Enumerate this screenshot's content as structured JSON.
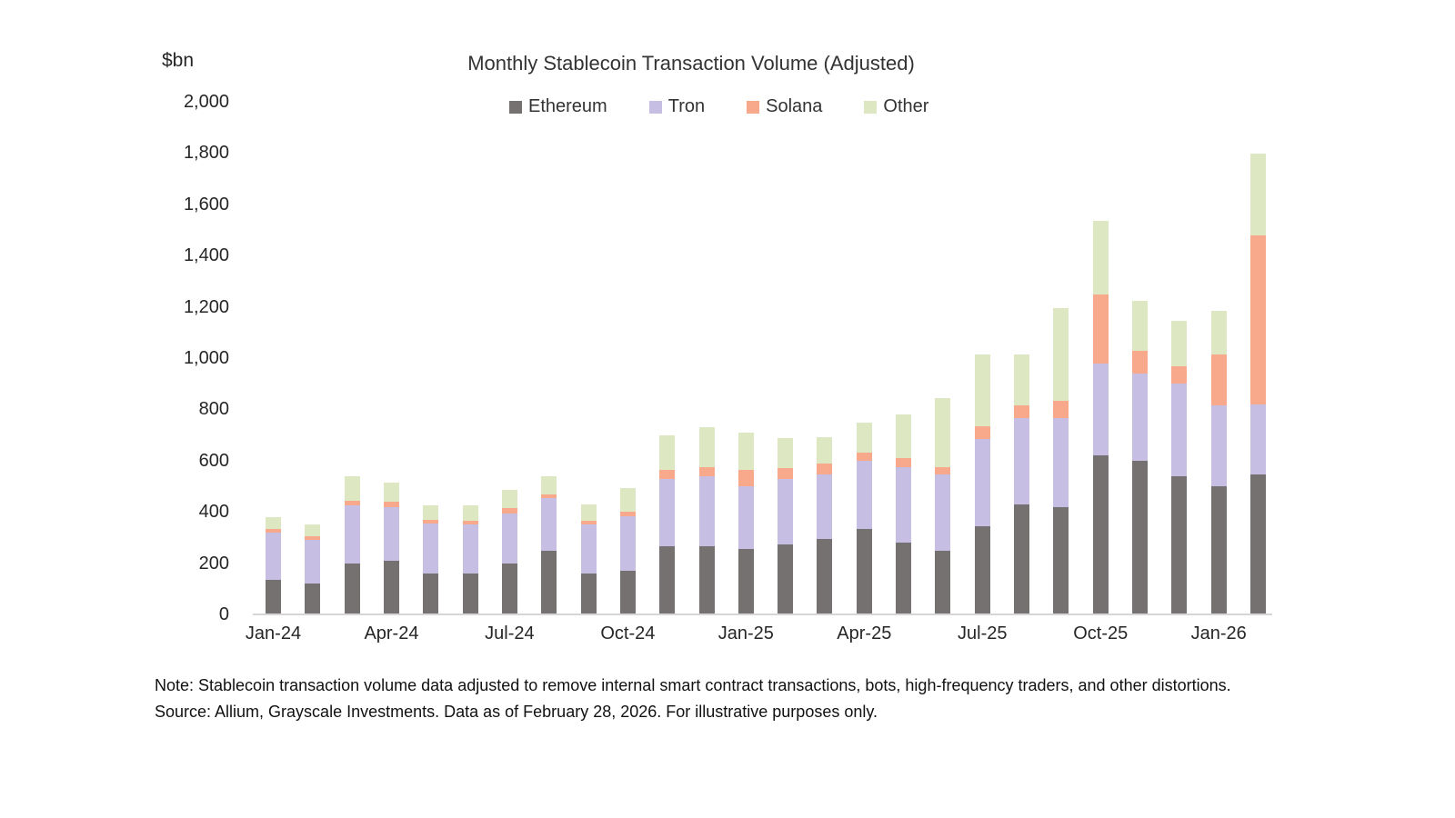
{
  "page": {
    "background": "#ffffff"
  },
  "chart_data": {
    "type": "bar",
    "variant": "stacked",
    "title": "Monthly Stablecoin Transaction Volume (Adjusted)",
    "y_axis_unit_label": "$bn",
    "ylabel": "",
    "xlabel": "",
    "ylim": [
      0,
      2000
    ],
    "y_tick_step": 200,
    "y_tick_labels": [
      "0",
      "200",
      "400",
      "600",
      "800",
      "1,000",
      "1,200",
      "1,400",
      "1,600",
      "1,800",
      "2,000"
    ],
    "grid": false,
    "legend_position": "top",
    "categories": [
      "Jan-24",
      "Feb-24",
      "Mar-24",
      "Apr-24",
      "May-24",
      "Jun-24",
      "Jul-24",
      "Aug-24",
      "Sep-24",
      "Oct-24",
      "Nov-24",
      "Dec-24",
      "Jan-25",
      "Feb-25",
      "Mar-25",
      "Apr-25",
      "May-25",
      "Jun-25",
      "Jul-25",
      "Aug-25",
      "Sep-25",
      "Oct-25",
      "Nov-25",
      "Dec-25",
      "Jan-26",
      "Feb-26"
    ],
    "x_tick_labels": [
      "Jan-24",
      "Apr-24",
      "Jul-24",
      "Oct-24",
      "Jan-25",
      "Apr-25",
      "Jul-25",
      "Oct-25",
      "Jan-26"
    ],
    "x_tick_every": 3,
    "series": [
      {
        "name": "Ethereum",
        "color": "#767171",
        "values": [
          135,
          120,
          200,
          210,
          160,
          160,
          200,
          250,
          160,
          170,
          265,
          265,
          255,
          275,
          295,
          335,
          280,
          250,
          345,
          430,
          420,
          620,
          600,
          540,
          500,
          545
        ]
      },
      {
        "name": "Tron",
        "color": "#c6bfe3",
        "values": [
          185,
          170,
          225,
          210,
          195,
          190,
          195,
          205,
          190,
          215,
          265,
          275,
          245,
          255,
          250,
          265,
          295,
          295,
          340,
          335,
          345,
          360,
          340,
          360,
          315,
          275
        ]
      },
      {
        "name": "Solana",
        "color": "#f9a98b",
        "values": [
          15,
          15,
          20,
          20,
          15,
          15,
          20,
          15,
          15,
          15,
          35,
          35,
          65,
          40,
          45,
          30,
          35,
          30,
          50,
          50,
          70,
          270,
          90,
          70,
          200,
          660
        ]
      },
      {
        "name": "Other",
        "color": "#dde8c2",
        "values": [
          45,
          45,
          95,
          75,
          55,
          60,
          70,
          70,
          65,
          95,
          135,
          155,
          145,
          120,
          100,
          120,
          170,
          270,
          280,
          200,
          360,
          285,
          195,
          175,
          170,
          320
        ]
      }
    ],
    "totals": [
      380,
      350,
      540,
      515,
      425,
      425,
      485,
      540,
      430,
      495,
      700,
      730,
      710,
      690,
      690,
      750,
      780,
      845,
      1015,
      1015,
      1195,
      1535,
      1225,
      1145,
      1185,
      1800
    ]
  },
  "note": {
    "text": "Note: Stablecoin transaction volume data adjusted to remove internal smart contract transactions, bots, high-frequency traders, and other distortions. Source: Allium, Grayscale Investments. Data as of February 28, 2026. For illustrative purposes only."
  }
}
